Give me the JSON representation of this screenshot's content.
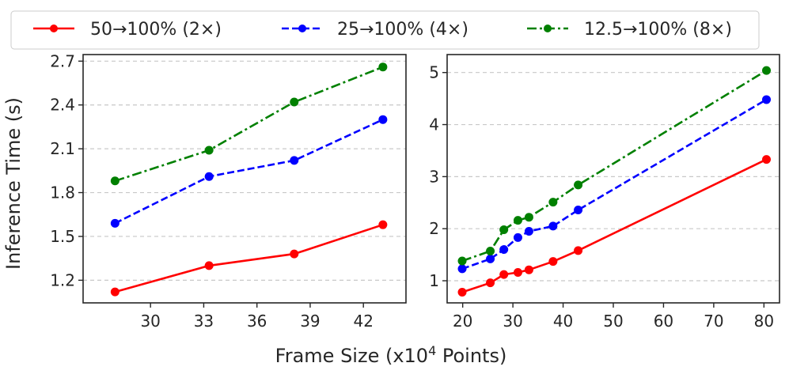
{
  "figure": {
    "shared_xlabel": "Frame Size (x10",
    "shared_xlabel_sup": "4",
    "shared_xlabel_suffix": " Points)",
    "shared_ylabel": "Inference Time (s)"
  },
  "legend": {
    "placement": "top",
    "items": [
      {
        "label": "50→100% (2×)",
        "color": "#ff0000",
        "dash": "solid"
      },
      {
        "label": "25→100% (4×)",
        "color": "#0000ff",
        "dash": "dashed"
      },
      {
        "label": "12.5→100% (8×)",
        "color": "#008000",
        "dash": "dashdot"
      }
    ]
  },
  "chart_data": [
    {
      "type": "line",
      "xlabel": "Frame Size (x10^4 Points)",
      "ylabel": "Inference Time (s)",
      "xlim": [
        26.2,
        44.4
      ],
      "ylim": [
        1.045,
        2.745
      ],
      "xticks": [
        30,
        33,
        36,
        39,
        42
      ],
      "yticks": [
        1.2,
        1.5,
        1.8,
        2.1,
        2.4,
        2.7
      ],
      "ytick_labels": [
        "1.2",
        "1.5",
        "1.8",
        "2.1",
        "2.4",
        "2.7"
      ],
      "grid": "y-dashed",
      "x": [
        28.0,
        33.3,
        38.1,
        43.1
      ],
      "series": [
        {
          "name": "50→100% (2×)",
          "color": "#ff0000",
          "dash": "solid",
          "values": [
            1.12,
            1.3,
            1.38,
            1.58
          ]
        },
        {
          "name": "25→100% (4×)",
          "color": "#0000ff",
          "dash": "dashed",
          "values": [
            1.59,
            1.91,
            2.02,
            2.3
          ]
        },
        {
          "name": "12.5→100% (8×)",
          "color": "#008000",
          "dash": "dashdot",
          "values": [
            1.88,
            2.09,
            2.42,
            2.66
          ]
        }
      ]
    },
    {
      "type": "line",
      "xlabel": "Frame Size (x10^4 Points)",
      "ylabel": "",
      "xlim": [
        16.9,
        83.1
      ],
      "ylim": [
        0.575,
        5.345
      ],
      "xticks": [
        20,
        30,
        40,
        50,
        60,
        70,
        80
      ],
      "yticks": [
        1,
        2,
        3,
        4,
        5
      ],
      "ytick_labels": [
        "1",
        "2",
        "3",
        "4",
        "5"
      ],
      "grid": "y-dashed",
      "x": [
        19.9,
        25.5,
        28.2,
        31.0,
        33.2,
        38.0,
        43.0,
        80.5
      ],
      "series": [
        {
          "name": "50→100% (2×)",
          "color": "#ff0000",
          "dash": "solid",
          "values": [
            0.78,
            0.96,
            1.12,
            1.16,
            1.21,
            1.37,
            1.58,
            3.33
          ]
        },
        {
          "name": "25→100% (4×)",
          "color": "#0000ff",
          "dash": "dashed",
          "values": [
            1.23,
            1.42,
            1.6,
            1.83,
            1.95,
            2.05,
            2.36,
            4.48
          ]
        },
        {
          "name": "12.5→100% (8×)",
          "color": "#008000",
          "dash": "dashdot",
          "values": [
            1.38,
            1.57,
            1.98,
            2.16,
            2.22,
            2.51,
            2.84,
            5.04
          ]
        }
      ]
    }
  ]
}
